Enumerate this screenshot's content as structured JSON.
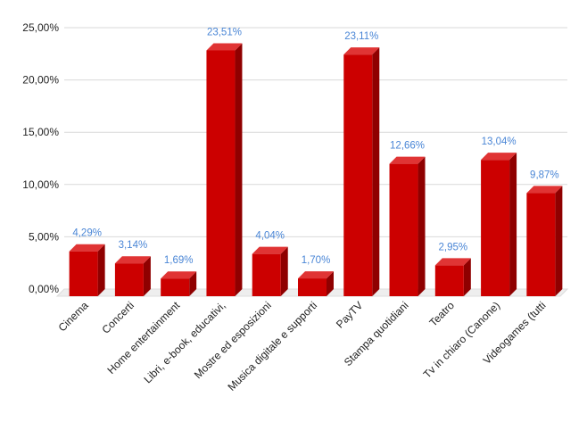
{
  "chart_data": {
    "type": "bar",
    "style": "3d-column",
    "categories": [
      "Cinema",
      "Concerti",
      "Home entertainment",
      "Libri, e-book, educativi,",
      "Mostre ed esposizioni",
      "Musica digitale e supporti",
      "PayTV",
      "Stampa quotidiani",
      "Teatro",
      "Tv in chiaro (Canone)",
      "Videogames (tutti"
    ],
    "values": [
      4.29,
      3.14,
      1.69,
      23.51,
      4.04,
      1.7,
      23.11,
      12.66,
      2.95,
      13.04,
      9.87
    ],
    "data_labels": [
      "4,29%",
      "3,14%",
      "1,69%",
      "23,51%",
      "4,04%",
      "1,70%",
      "23,11%",
      "12,66%",
      "2,95%",
      "13,04%",
      "9,87%"
    ],
    "y_ticks": [
      0,
      5,
      10,
      15,
      20,
      25
    ],
    "y_tick_labels": [
      "0,00%",
      "5,00%",
      "10,00%",
      "15,00%",
      "20,00%",
      "25,00%"
    ],
    "ylim": [
      0,
      25
    ],
    "grid": true,
    "legend": "none",
    "title": "",
    "xlabel": "",
    "ylabel": "",
    "colors": {
      "bar_front": "#cc0000",
      "bar_top": "#e03434",
      "bar_side": "#8f0000",
      "data_label": "#4a86d6",
      "gridline": "#d9d9d9"
    }
  }
}
